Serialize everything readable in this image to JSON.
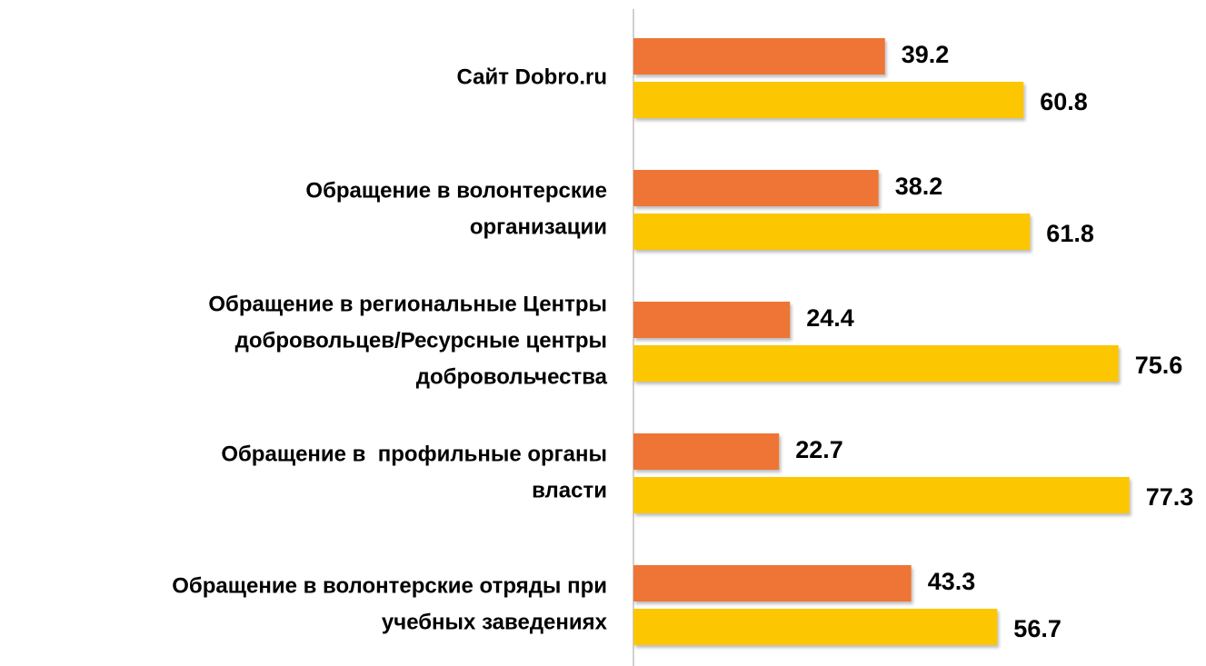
{
  "chart_data": {
    "type": "bar",
    "orientation": "horizontal",
    "categories": [
      [
        "Сайт Dobro.ru"
      ],
      [
        "Обращение в волонтерские",
        "организации"
      ],
      [
        "Обращение в региональные Центры",
        "добровольцев/Ресурсные центры",
        "добровольчества"
      ],
      [
        "Обращение в  профильные органы",
        "власти"
      ],
      [
        "Обращение в волонтерские отряды при",
        "учебных заведениях"
      ]
    ],
    "series": [
      {
        "color": "#ee7535",
        "values": [
          39.2,
          38.2,
          24.4,
          22.7,
          43.3
        ]
      },
      {
        "color": "#fcc600",
        "values": [
          60.8,
          61.8,
          75.6,
          77.3,
          56.7
        ]
      }
    ],
    "xlim": [
      0,
      100
    ]
  }
}
